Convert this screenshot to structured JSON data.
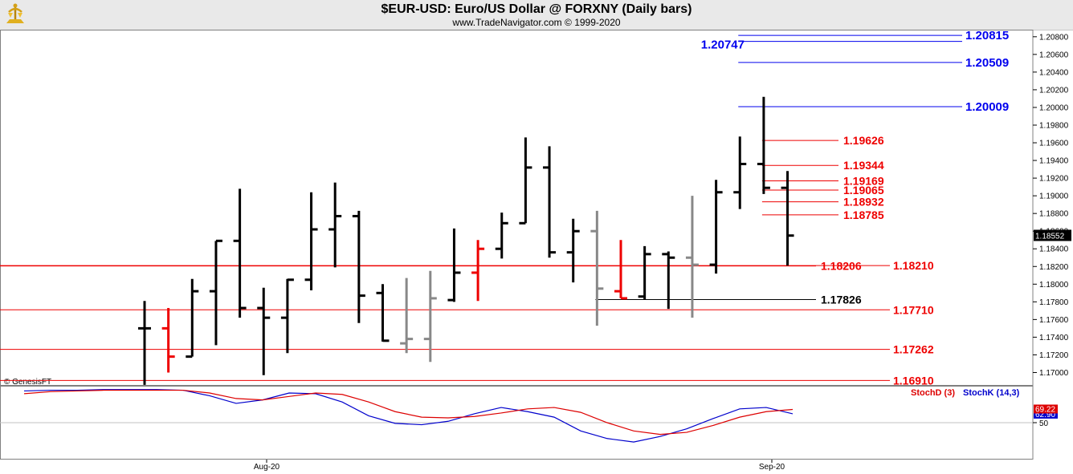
{
  "header": {
    "title": "$EUR-USD:  Euro/US Dollar @ FORXNY  (Daily bars)",
    "subtitle": "www.TradeNavigator.com © 1999-2020"
  },
  "chart_data": {
    "type": "ohlc",
    "price_axis": {
      "range": [
        1.1685,
        1.2088
      ],
      "ticks": [
        "1.17000",
        "1.17200",
        "1.17400",
        "1.17600",
        "1.17800",
        "1.18000",
        "1.18200",
        "1.18400",
        "1.18600",
        "1.18800",
        "1.19000",
        "1.19200",
        "1.19400",
        "1.19600",
        "1.19800",
        "1.20000",
        "1.20200",
        "1.20400",
        "1.20600",
        "1.20800"
      ],
      "current_price": "1.18552",
      "grid": false
    },
    "x_labels": [
      {
        "label": "Aug-20",
        "bar": 5
      },
      {
        "label": "Sep-20",
        "bar": 26
      }
    ],
    "bars": [
      {
        "o": 1.175,
        "h": 1.1781,
        "l": 1.1686,
        "c": 1.175,
        "color": "#000000"
      },
      {
        "o": 1.175,
        "h": 1.1773,
        "l": 1.17,
        "c": 1.1718,
        "color": "#ee0000"
      },
      {
        "o": 1.1718,
        "h": 1.1806,
        "l": 1.1718,
        "c": 1.1792,
        "color": "#000000"
      },
      {
        "o": 1.1792,
        "h": 1.1849,
        "l": 1.1731,
        "c": 1.1849,
        "color": "#000000"
      },
      {
        "o": 1.1849,
        "h": 1.1908,
        "l": 1.1762,
        "c": 1.1773,
        "color": "#000000"
      },
      {
        "o": 1.1773,
        "h": 1.1796,
        "l": 1.1697,
        "c": 1.1762,
        "color": "#000000"
      },
      {
        "o": 1.1762,
        "h": 1.1806,
        "l": 1.1722,
        "c": 1.1805,
        "color": "#000000"
      },
      {
        "o": 1.1805,
        "h": 1.1904,
        "l": 1.1793,
        "c": 1.1862,
        "color": "#000000"
      },
      {
        "o": 1.1862,
        "h": 1.1915,
        "l": 1.1819,
        "c": 1.1877,
        "color": "#000000"
      },
      {
        "o": 1.1877,
        "h": 1.1883,
        "l": 1.1756,
        "c": 1.1787,
        "color": "#000000"
      },
      {
        "o": 1.179,
        "h": 1.18,
        "l": 1.1735,
        "c": 1.1736,
        "color": "#000000"
      },
      {
        "o": 1.1733,
        "h": 1.1807,
        "l": 1.1722,
        "c": 1.1738,
        "color": "#888888"
      },
      {
        "o": 1.1738,
        "h": 1.1815,
        "l": 1.1712,
        "c": 1.1784,
        "color": "#888888"
      },
      {
        "o": 1.1782,
        "h": 1.1863,
        "l": 1.178,
        "c": 1.1813,
        "color": "#000000"
      },
      {
        "o": 1.1813,
        "h": 1.185,
        "l": 1.1781,
        "c": 1.184,
        "color": "#ee0000"
      },
      {
        "o": 1.184,
        "h": 1.1881,
        "l": 1.1829,
        "c": 1.1869,
        "color": "#000000"
      },
      {
        "o": 1.1869,
        "h": 1.1966,
        "l": 1.1869,
        "c": 1.1932,
        "color": "#000000"
      },
      {
        "o": 1.1932,
        "h": 1.1956,
        "l": 1.183,
        "c": 1.1836,
        "color": "#000000"
      },
      {
        "o": 1.1836,
        "h": 1.1874,
        "l": 1.1802,
        "c": 1.186,
        "color": "#000000"
      },
      {
        "o": 1.186,
        "h": 1.1883,
        "l": 1.1753,
        "c": 1.1795,
        "color": "#888888"
      },
      {
        "o": 1.1792,
        "h": 1.185,
        "l": 1.1784,
        "c": 1.1784,
        "color": "#ee0000"
      },
      {
        "o": 1.1786,
        "h": 1.1843,
        "l": 1.1783,
        "c": 1.1834,
        "color": "#000000"
      },
      {
        "o": 1.1834,
        "h": 1.1837,
        "l": 1.1772,
        "c": 1.183,
        "color": "#000000"
      },
      {
        "o": 1.183,
        "h": 1.19,
        "l": 1.1762,
        "c": 1.1822,
        "color": "#888888"
      },
      {
        "o": 1.1822,
        "h": 1.1918,
        "l": 1.1812,
        "c": 1.1904,
        "color": "#000000"
      },
      {
        "o": 1.1904,
        "h": 1.1967,
        "l": 1.1885,
        "c": 1.1936,
        "color": "#000000"
      },
      {
        "o": 1.1936,
        "h": 1.2012,
        "l": 1.1902,
        "c": 1.1909,
        "color": "#000000"
      },
      {
        "o": 1.1909,
        "h": 1.1928,
        "l": 1.1821,
        "c": 1.1855,
        "color": "#000000"
      }
    ],
    "levels": [
      {
        "label": "1.20815",
        "value": 1.20815,
        "color": "#0000ee",
        "label_side": "right",
        "from_bar": 25
      },
      {
        "label": "1.20747",
        "value": 1.20747,
        "color": "#0000ee",
        "label_side": "left",
        "from_bar": 25
      },
      {
        "label": "1.20509",
        "value": 1.20509,
        "color": "#0000ee",
        "label_side": "right",
        "from_bar": 25
      },
      {
        "label": "1.20009",
        "value": 1.20009,
        "color": "#0000ee",
        "label_side": "right",
        "from_bar": 25
      },
      {
        "label": "1.19626",
        "value": 1.19626,
        "color": "#ee0000",
        "label_side": "mid",
        "from_bar": 26
      },
      {
        "label": "1.19344",
        "value": 1.19344,
        "color": "#ee0000",
        "label_side": "mid",
        "from_bar": 26
      },
      {
        "label": "1.19169",
        "value": 1.19169,
        "color": "#ee0000",
        "label_side": "mid",
        "from_bar": 26
      },
      {
        "label": "1.19065",
        "value": 1.19065,
        "color": "#ee0000",
        "label_side": "mid",
        "from_bar": 26
      },
      {
        "label": "1.18932",
        "value": 1.18932,
        "color": "#ee0000",
        "label_side": "mid",
        "from_bar": 26
      },
      {
        "label": "1.18785",
        "value": 1.18785,
        "color": "#ee0000",
        "label_side": "mid",
        "from_bar": 26
      },
      {
        "label": "1.18206",
        "value": 1.18206,
        "color": "#ee0000",
        "label_side": "mid",
        "from_bar": -1
      },
      {
        "label": "1.18210",
        "value": 1.1821,
        "color": "#ee0000",
        "label_side": "right",
        "from_bar": -1
      },
      {
        "label": "1.17826",
        "value": 1.17826,
        "color": "#000000",
        "label_side": "mid",
        "from_bar": 19
      },
      {
        "label": "1.17710",
        "value": 1.1771,
        "color": "#ee0000",
        "label_side": "right",
        "from_bar": -1
      },
      {
        "label": "1.17262",
        "value": 1.17262,
        "color": "#ee0000",
        "label_side": "right",
        "from_bar": -1
      },
      {
        "label": "1.16910",
        "value": 1.1691,
        "color": "#ee0000",
        "label_side": "right",
        "from_bar": -1
      }
    ],
    "watermark": "© GenesisFT",
    "stochastic": {
      "legend": [
        {
          "name": "StochD (3)",
          "color": "#dd0000"
        },
        {
          "name": "StochK (14,3)",
          "color": "#0000cc"
        }
      ],
      "tick": "50",
      "value_d": "69.22",
      "value_k": "62.90",
      "range": [
        0,
        100
      ],
      "stoch_d": [
        92,
        95,
        96,
        97,
        97,
        97,
        97,
        93,
        85,
        83,
        88,
        93,
        91,
        80,
        66,
        58,
        57,
        59,
        64,
        70,
        72,
        65,
        50,
        38,
        33,
        36,
        46,
        58,
        66,
        69.22
      ],
      "stoch_k": [
        96,
        97,
        97,
        98,
        98,
        98,
        97,
        89,
        78,
        83,
        93,
        92,
        80,
        60,
        49,
        47,
        52,
        63,
        72,
        66,
        58,
        38,
        27,
        22,
        30,
        41,
        56,
        70,
        72,
        62.9
      ]
    }
  }
}
